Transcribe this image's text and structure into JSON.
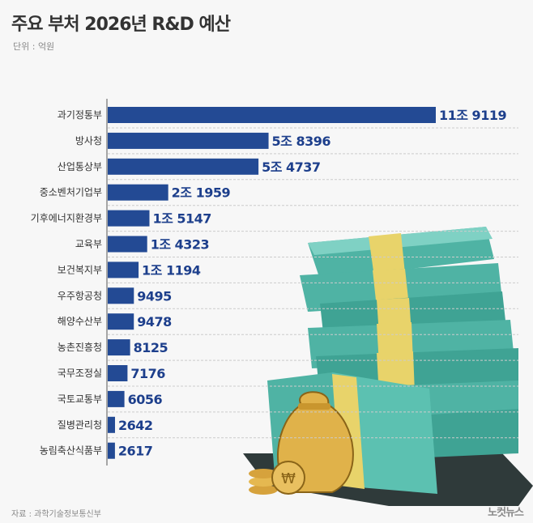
{
  "title": "주요 부처 2026년 R&D 예산",
  "unit": "단위 : 억원",
  "source": "자료 : 과학기술정보통신부",
  "logo": "노컷뉴스",
  "colors": {
    "bar": "#234a94",
    "label": "#1d3f8c",
    "bills": "#4fb3a4",
    "band": "#e8d36a"
  },
  "chart_data": {
    "type": "bar",
    "orientation": "horizontal",
    "title": "주요 부처 2026년 R&D 예산",
    "ylabel": "",
    "xlabel": "단위 : 억원",
    "categories": [
      "과기정통부",
      "방사청",
      "산업통상부",
      "중소벤처기업부",
      "기후에너지환경부",
      "교육부",
      "보건복지부",
      "우주항공청",
      "해양수산부",
      "농촌진흥청",
      "국무조정실",
      "국토교통부",
      "질병관리청",
      "농림축산식품부"
    ],
    "values": [
      119119,
      58396,
      54737,
      21959,
      15147,
      14323,
      11194,
      9495,
      9478,
      8125,
      7176,
      6056,
      2642,
      2617
    ],
    "value_labels": [
      "11조 9119",
      "5조 8396",
      "5조 4737",
      "2조 1959",
      "1조 5147",
      "1조 4323",
      "1조 1194",
      "9495",
      "9478",
      "8125",
      "7176",
      "6056",
      "2642",
      "2617"
    ],
    "xlim": [
      0,
      120000
    ],
    "grid": true
  }
}
